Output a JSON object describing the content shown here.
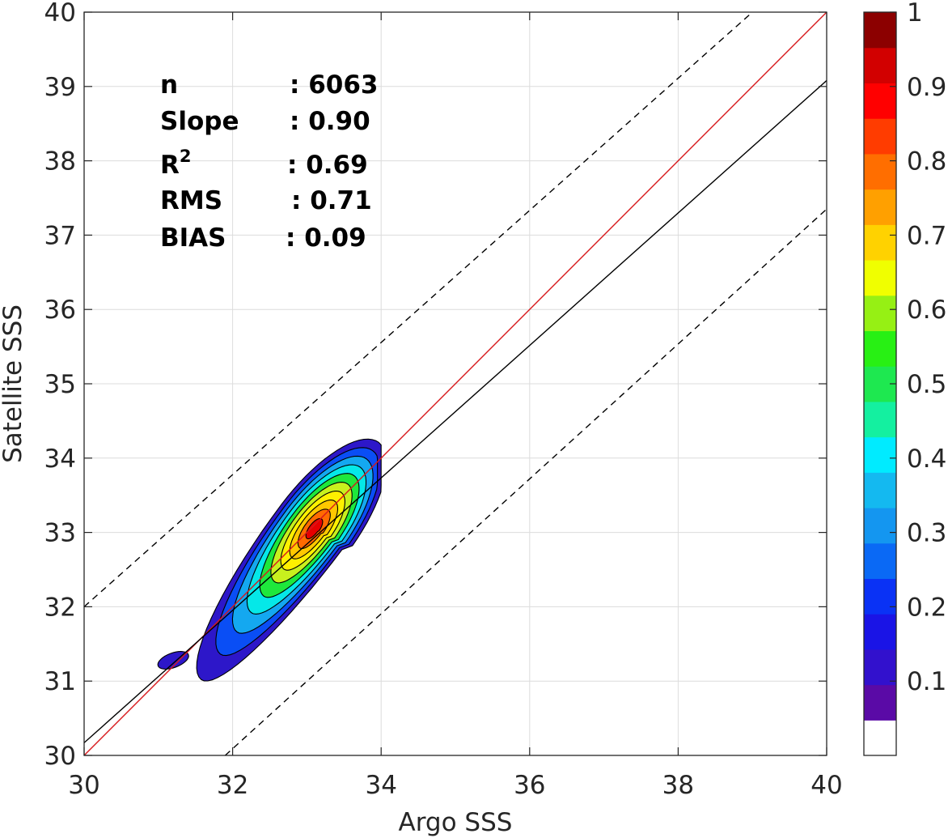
{
  "chart_data": {
    "type": "heatmap",
    "xlabel": "Argo SSS",
    "ylabel": "Satellite SSS",
    "xlim": [
      30,
      40
    ],
    "ylim": [
      30,
      40
    ],
    "x_ticks": [
      "30",
      "32",
      "34",
      "36",
      "38",
      "40"
    ],
    "y_ticks": [
      "30",
      "31",
      "32",
      "33",
      "34",
      "35",
      "36",
      "37",
      "38",
      "39",
      "40"
    ],
    "grid": true,
    "stats": [
      {
        "label": "n",
        "value": ": 6063"
      },
      {
        "label": "Slope",
        "value": ": 0.90"
      },
      {
        "label": "R",
        "label_sup": "2",
        "value": ": 0.69"
      },
      {
        "label": "RMS",
        "value": ": 0.71"
      },
      {
        "label": "BIAS",
        "value": ": 0.09"
      }
    ],
    "lines": [
      {
        "name": "one-to-one",
        "color": "#d7191c",
        "style": "solid",
        "x": [
          30,
          40
        ],
        "y": [
          30,
          40
        ]
      },
      {
        "name": "regression",
        "color": "#000000",
        "style": "solid",
        "x": [
          30,
          40
        ],
        "y": [
          30.17,
          39.08
        ]
      },
      {
        "name": "upper-bound",
        "color": "#000000",
        "style": "dashed",
        "x": [
          30,
          39
        ],
        "y": [
          32,
          40
        ]
      },
      {
        "name": "lower-bound",
        "color": "#000000",
        "style": "dashed",
        "x": [
          31.9,
          40
        ],
        "y": [
          30,
          37.35
        ]
      }
    ],
    "density": {
      "peak_x": 33.1,
      "peak_y": 33.05,
      "levels": [
        0.05,
        0.15,
        0.25,
        0.35,
        0.45,
        0.55,
        0.65,
        0.75,
        0.85,
        0.95
      ],
      "level_colors": [
        "#2d17c9",
        "#0a4ef5",
        "#14a8f0",
        "#05e8e8",
        "#1ee83c",
        "#c8f01e",
        "#fff000",
        "#ffc800",
        "#ff6a00",
        "#e60000"
      ]
    },
    "colorbar": {
      "ticks": [
        "0.1",
        "0.2",
        "0.3",
        "0.4",
        "0.5",
        "0.6",
        "0.7",
        "0.8",
        "0.9",
        "1"
      ],
      "tick_values": [
        0.1,
        0.2,
        0.3,
        0.4,
        0.5,
        0.6,
        0.7,
        0.8,
        0.9,
        1.0
      ],
      "range": [
        0,
        1
      ],
      "colors": [
        "#ffffff",
        "#5a0aa6",
        "#3211cd",
        "#1a14e6",
        "#0a32f5",
        "#0a69f5",
        "#1496f0",
        "#14b9f0",
        "#00ebff",
        "#14f0a0",
        "#1ee850",
        "#28f014",
        "#96f014",
        "#f0ff00",
        "#ffd200",
        "#ffa000",
        "#ff6e00",
        "#ff3c00",
        "#ff0000",
        "#d20000",
        "#8c0000"
      ]
    }
  }
}
